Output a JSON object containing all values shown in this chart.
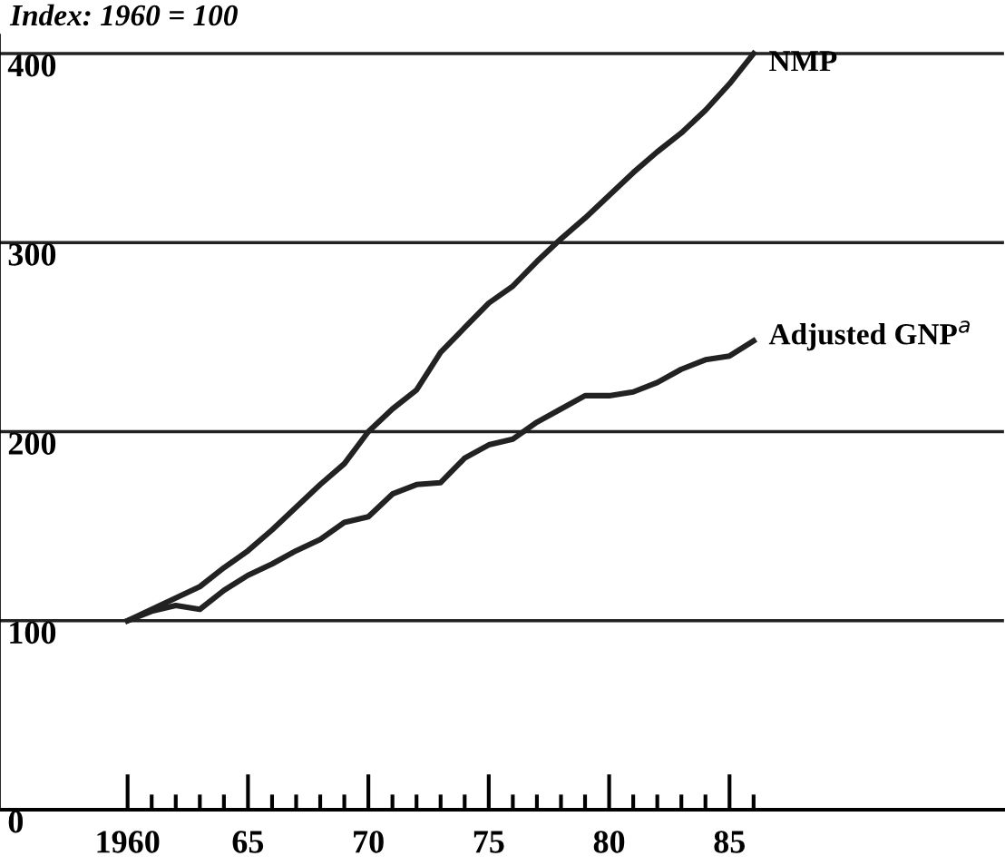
{
  "chart_data": {
    "type": "line",
    "title": "Index: 1960 = 100",
    "x": [
      1960,
      1961,
      1962,
      1963,
      1964,
      1965,
      1966,
      1967,
      1968,
      1969,
      1970,
      1971,
      1972,
      1973,
      1974,
      1975,
      1976,
      1977,
      1978,
      1979,
      1980,
      1981,
      1982,
      1983,
      1984,
      1985,
      1986
    ],
    "series": [
      {
        "name": "NMP",
        "color": "#222222",
        "values": [
          100,
          106,
          112,
          118,
          128,
          137,
          148,
          160,
          172,
          183,
          200,
          212,
          222,
          242,
          255,
          268,
          277,
          290,
          302,
          313,
          325,
          337,
          348,
          358,
          370,
          384,
          400
        ]
      },
      {
        "name": "Adjusted GNP$^{a}$",
        "color": "#222222",
        "values": [
          100,
          105,
          108,
          106,
          116,
          124,
          130,
          137,
          143,
          152,
          155,
          167,
          172,
          173,
          186,
          193,
          196,
          205,
          212,
          219,
          219,
          221,
          226,
          233,
          238,
          240,
          248
        ]
      }
    ],
    "xlim": [
      1954.7,
      1996.4
    ],
    "ylim": [
      0,
      410
    ],
    "xticks": [
      {
        "value": 1960,
        "label": "1960"
      },
      {
        "value": 1961,
        "label": null
      },
      {
        "value": 1962,
        "label": null
      },
      {
        "value": 1963,
        "label": null
      },
      {
        "value": 1964,
        "label": null
      },
      {
        "value": 1965,
        "label": "65"
      },
      {
        "value": 1966,
        "label": null
      },
      {
        "value": 1967,
        "label": null
      },
      {
        "value": 1968,
        "label": null
      },
      {
        "value": 1969,
        "label": null
      },
      {
        "value": 1970,
        "label": "70"
      },
      {
        "value": 1971,
        "label": null
      },
      {
        "value": 1972,
        "label": null
      },
      {
        "value": 1973,
        "label": null
      },
      {
        "value": 1974,
        "label": null
      },
      {
        "value": 1975,
        "label": "75"
      },
      {
        "value": 1976,
        "label": null
      },
      {
        "value": 1977,
        "label": null
      },
      {
        "value": 1978,
        "label": null
      },
      {
        "value": 1979,
        "label": null
      },
      {
        "value": 1980,
        "label": "80"
      },
      {
        "value": 1981,
        "label": null
      },
      {
        "value": 1982,
        "label": null
      },
      {
        "value": 1983,
        "label": null
      },
      {
        "value": 1984,
        "label": null
      },
      {
        "value": 1985,
        "label": "85"
      },
      {
        "value": 1986,
        "label": null
      }
    ],
    "yticks": [
      0,
      100,
      200,
      300,
      400
    ],
    "grid": "y",
    "legend": false,
    "marker": "none",
    "line_style": "solid"
  }
}
